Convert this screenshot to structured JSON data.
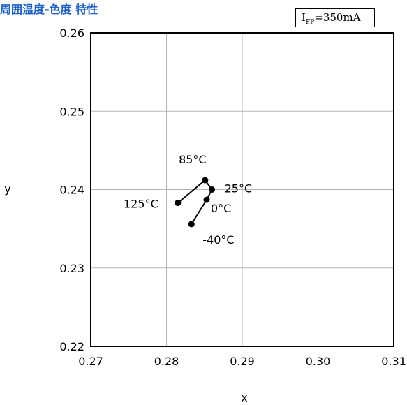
{
  "title": "周囲温度-色度 特性",
  "condition": {
    "symbol": "I",
    "subscript": "FP",
    "value": "=350mA"
  },
  "chart_data": {
    "type": "line",
    "xlabel": "x",
    "ylabel": "y",
    "xlim": [
      0.27,
      0.31
    ],
    "ylim": [
      0.22,
      0.26
    ],
    "x_ticks": [
      "0.27",
      "0.28",
      "0.29",
      "0.30",
      "0.31"
    ],
    "y_ticks": [
      "0.22",
      "0.23",
      "0.24",
      "0.25",
      "0.26"
    ],
    "grid": true,
    "series": [
      {
        "points": [
          {
            "label": "125°C",
            "x": 0.2815,
            "y": 0.2383
          },
          {
            "label": "85°C",
            "x": 0.2851,
            "y": 0.2412
          },
          {
            "label": "25°C",
            "x": 0.286,
            "y": 0.24
          },
          {
            "label": "0°C",
            "x": 0.2853,
            "y": 0.2387
          },
          {
            "label": "-40°C",
            "x": 0.2833,
            "y": 0.2356
          }
        ]
      }
    ]
  }
}
